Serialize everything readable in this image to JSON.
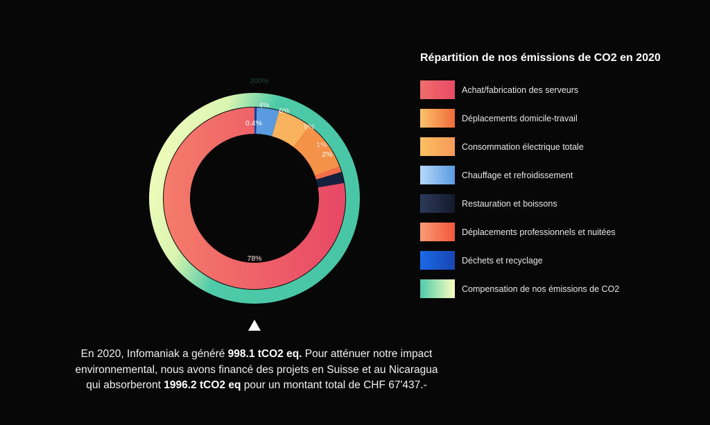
{
  "chart_data": {
    "type": "pie",
    "subtype": "nested-donut",
    "title": "Répartition de nos émissions de CO2 en 2020",
    "legend_position": "right",
    "center": [
      367,
      286
    ],
    "outer_ring": {
      "r_outer": 152,
      "r_inner": 132,
      "slices": [
        {
          "name": "Compensation de nos émissions de CO2",
          "value": 200,
          "label": "200%",
          "color_from": "#fbffc0",
          "color_to": "#4ecaa8"
        }
      ]
    },
    "inner_ring": {
      "r_outer": 131,
      "r_inner": 93,
      "slices": [
        {
          "name": "Déchets et recyclage",
          "value": 0.4,
          "label": "0.4%",
          "color": "#1a3fa0",
          "label_color": "#ffffff"
        },
        {
          "name": "Chauffage et refroidissement",
          "value": 4,
          "label": "4%",
          "color": "#5a9be0",
          "label_color": "#e8f2ff"
        },
        {
          "name": "Consommation électrique totale",
          "value": 6,
          "label": "6%",
          "color": "#f9b25e",
          "label_color": "#fff1dc"
        },
        {
          "name": "Déplacements domicile-travail",
          "value": 9,
          "label": "9%",
          "color": "#f4924a",
          "label_color": "#ffe5d2"
        },
        {
          "name": "Déplacements professionnels et nuitées",
          "value": 1,
          "label": "1%",
          "color": "#f46c4a",
          "label_color": "#ffd9cf"
        },
        {
          "name": "Restauration et boissons",
          "value": 2,
          "label": "2%",
          "color": "#16213f",
          "label_color": "#ffffff"
        },
        {
          "name": "Achat/fabrication des serveurs",
          "value": 78,
          "label": "78%",
          "color": "#ec5a62",
          "label_color": "#ffe0e0"
        }
      ]
    }
  },
  "legend": {
    "title": "Répartition de nos émissions de CO2 en 2020",
    "items": [
      {
        "label": "Achat/fabrication des serveurs",
        "from": "#f06e6a",
        "to": "#e94a66"
      },
      {
        "label": "Déplacements domicile-travail",
        "from": "#fbc46a",
        "to": "#f06a3a"
      },
      {
        "label": "Consommation électrique totale",
        "from": "#fac060",
        "to": "#f89a5a"
      },
      {
        "label": "Chauffage et refroidissement",
        "from": "#b6d8fb",
        "to": "#5a9be0"
      },
      {
        "label": "Restauration et boissons",
        "from": "#2d3a5a",
        "to": "#141a2c"
      },
      {
        "label": "Déplacements professionnels et nuitées",
        "from": "#fc9a74",
        "to": "#f0583a"
      },
      {
        "label": "Déchets et recyclage",
        "from": "#1a6ae8",
        "to": "#1846b0"
      },
      {
        "label": "Compensation de nos émissions de CO2",
        "from": "#4ecaa8",
        "to": "#fbffc0"
      }
    ]
  },
  "summary": {
    "p1": "En 2020, Infomaniak a généré ",
    "b1": "998.1 tCO2 eq.",
    "p2": " Pour atténuer notre impact environnemental, nous avons financé des projets en Suisse et au Nicaragua qui absorberont ",
    "b2": "1996.2 tCO2 eq",
    "p3": " pour un montant total de CHF 67'437.-"
  }
}
